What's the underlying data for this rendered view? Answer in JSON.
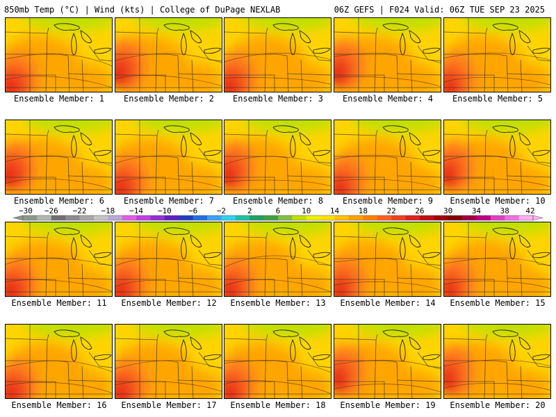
{
  "header": {
    "left_title": "850mb Temp (°C) | Wind (kts) | College of DuPage NEXLAB",
    "right_title": "06Z GEFS | F024 Valid: 06Z TUE SEP 23 2025"
  },
  "caption_prefix": "Ensemble Member: ",
  "members": [
    {
      "label": "Ensemble Member: 1",
      "warm_core": "southwest"
    },
    {
      "label": "Ensemble Member: 2",
      "warm_core": "west"
    },
    {
      "label": "Ensemble Member: 3",
      "warm_core": "southwest"
    },
    {
      "label": "Ensemble Member: 4",
      "warm_core": "west"
    },
    {
      "label": "Ensemble Member: 5",
      "warm_core": "southwest"
    },
    {
      "label": "Ensemble Member: 6",
      "warm_core": "west"
    },
    {
      "label": "Ensemble Member: 7",
      "warm_core": "southwest"
    },
    {
      "label": "Ensemble Member: 8",
      "warm_core": "west"
    },
    {
      "label": "Ensemble Member: 9",
      "warm_core": "southwest"
    },
    {
      "label": "Ensemble Member: 10",
      "warm_core": "west"
    },
    {
      "label": "Ensemble Member: 11",
      "warm_core": "southwest"
    },
    {
      "label": "Ensemble Member: 12",
      "warm_core": "southwest"
    },
    {
      "label": "Ensemble Member: 13",
      "warm_core": "southwest"
    },
    {
      "label": "Ensemble Member: 14",
      "warm_core": "southwest"
    },
    {
      "label": "Ensemble Member: 15",
      "warm_core": "southwest"
    },
    {
      "label": "Ensemble Member: 16",
      "warm_core": "southwest"
    },
    {
      "label": "Ensemble Member: 17",
      "warm_core": "southwest"
    },
    {
      "label": "Ensemble Member: 18",
      "warm_core": "southwest"
    },
    {
      "label": "Ensemble Member: 19",
      "warm_core": "west"
    },
    {
      "label": "Ensemble Member: 20",
      "warm_core": "west"
    }
  ],
  "colorbar": {
    "unit": "°C",
    "tick_labels": [
      "-30",
      "-26",
      "-22",
      "-18",
      "-14",
      "-10",
      "-6",
      "-2",
      "2",
      "6",
      "10",
      "14",
      "18",
      "22",
      "26",
      "30",
      "34",
      "38",
      "42"
    ],
    "colors": [
      "#8a9a8a",
      "#b0b8b0",
      "#707070",
      "#8c8c8c",
      "#a8a8a8",
      "#c4c4c4",
      "#b8a8d8",
      "#e060e0",
      "#c040e0",
      "#9030d0",
      "#6020c0",
      "#2040c0",
      "#2070e0",
      "#40a0f0",
      "#30d0f0",
      "#20c0a0",
      "#20a060",
      "#40a040",
      "#80c040",
      "#c0e000",
      "#f0f000",
      "#ffe000",
      "#ffc000",
      "#ffa000",
      "#ff8000",
      "#ff6020",
      "#f04020",
      "#e02020",
      "#c01010",
      "#a00000",
      "#800000",
      "#a00040",
      "#c00080",
      "#e040c0",
      "#f070e0",
      "#ffb0f0"
    ],
    "palette": {
      "cool": "#bfe000",
      "mild": "#ffd400",
      "warm": "#ffa500",
      "hot": "#ff7a1a",
      "hotter": "#f24b1a",
      "hottest": "#e01818"
    }
  }
}
